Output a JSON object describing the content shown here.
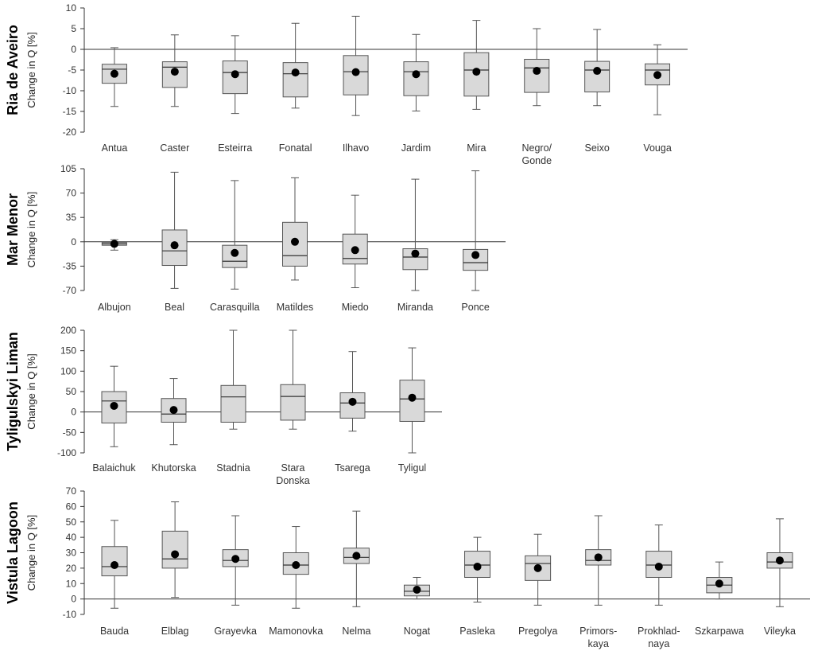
{
  "chart_data": [
    {
      "type": "box",
      "region": "Ria de Aveiro",
      "ylabel": "Change in Q [%]",
      "ylim": [
        -20,
        10
      ],
      "yticks": [
        10,
        5,
        0,
        -5,
        -10,
        -15,
        -20
      ],
      "categories": [
        [
          "Antua"
        ],
        [
          "Caster"
        ],
        [
          "Esteirra"
        ],
        [
          "Fonatal"
        ],
        [
          "Ilhavo"
        ],
        [
          "Jardim"
        ],
        [
          "Mira"
        ],
        [
          "Negro/",
          "Gonde"
        ],
        [
          "Seixo"
        ],
        [
          "Vouga"
        ]
      ],
      "boxes": [
        {
          "min": -13.8,
          "q1": -8.2,
          "median": -4.8,
          "q3": -3.6,
          "max": 0.4,
          "mean": -5.9
        },
        {
          "min": -13.8,
          "q1": -9.2,
          "median": -4.3,
          "q3": -3.0,
          "max": 3.5,
          "mean": -5.4
        },
        {
          "min": -15.5,
          "q1": -10.7,
          "median": -5.6,
          "q3": -2.8,
          "max": 3.3,
          "mean": -6.0
        },
        {
          "min": -14.2,
          "q1": -11.5,
          "median": -5.9,
          "q3": -3.2,
          "max": 6.3,
          "mean": -5.6
        },
        {
          "min": -16.0,
          "q1": -11.0,
          "median": -5.4,
          "q3": -1.5,
          "max": 8.0,
          "mean": -5.5
        },
        {
          "min": -14.9,
          "q1": -11.2,
          "median": -5.4,
          "q3": -3.0,
          "max": 3.6,
          "mean": -6.0
        },
        {
          "min": -14.5,
          "q1": -11.3,
          "median": -5.0,
          "q3": -0.8,
          "max": 7.0,
          "mean": -5.4
        },
        {
          "min": -13.6,
          "q1": -10.4,
          "median": -4.5,
          "q3": -2.4,
          "max": 5.0,
          "mean": -5.2
        },
        {
          "min": -13.6,
          "q1": -10.3,
          "median": -5.0,
          "q3": -2.9,
          "max": 4.8,
          "mean": -5.2
        },
        {
          "min": -15.8,
          "q1": -8.6,
          "median": -5.0,
          "q3": -3.5,
          "max": 1.1,
          "mean": -6.2
        }
      ]
    },
    {
      "type": "box",
      "region": "Mar Menor",
      "ylabel": "Change in Q [%]",
      "ylim": [
        -70,
        105
      ],
      "yticks": [
        105,
        70,
        35,
        0,
        -35,
        -70
      ],
      "categories": [
        [
          "Albujon"
        ],
        [
          "Beal"
        ],
        [
          "Carasquilla"
        ],
        [
          "Matildes"
        ],
        [
          "Miedo"
        ],
        [
          "Miranda"
        ],
        [
          "Ponce"
        ]
      ],
      "boxes": [
        {
          "min": -12,
          "q1": -5,
          "median": -3,
          "q3": -1,
          "max": 3,
          "mean": -3
        },
        {
          "min": -67,
          "q1": -34,
          "median": -13,
          "q3": 17,
          "max": 100,
          "mean": -5
        },
        {
          "min": -68,
          "q1": -37,
          "median": -28,
          "q3": -5,
          "max": 88,
          "mean": -16
        },
        {
          "min": -55,
          "q1": -35,
          "median": -20,
          "q3": 28,
          "max": 92,
          "mean": 0
        },
        {
          "min": -66,
          "q1": -32,
          "median": -24,
          "q3": 11,
          "max": 67,
          "mean": -12
        },
        {
          "min": -70,
          "q1": -40,
          "median": -22,
          "q3": -10,
          "max": 90,
          "mean": -17
        },
        {
          "min": -70,
          "q1": -41,
          "median": -30,
          "q3": -11,
          "max": 102,
          "mean": -19
        }
      ]
    },
    {
      "type": "box",
      "region": "Tyligulskyi Liman",
      "ylabel": "Change in Q [%]",
      "ylim": [
        -100,
        200
      ],
      "yticks": [
        200,
        150,
        100,
        50,
        0,
        -50,
        -100
      ],
      "categories": [
        [
          "Balaichuk"
        ],
        [
          "Khutorska"
        ],
        [
          "Stadnia"
        ],
        [
          "Stara",
          "Donska"
        ],
        [
          "Tsarega"
        ],
        [
          "Tyligul"
        ]
      ],
      "boxes": [
        {
          "min": -85,
          "q1": -27,
          "median": 27,
          "q3": 50,
          "max": 112,
          "mean": 15
        },
        {
          "min": -80,
          "q1": -25,
          "median": -5,
          "q3": 33,
          "max": 82,
          "mean": 5
        },
        {
          "min": -42,
          "q1": -25,
          "median": 37,
          "q3": 65,
          "max": 200,
          "mean": null
        },
        {
          "min": -42,
          "q1": -20,
          "median": 38,
          "q3": 67,
          "max": 200,
          "mean": null
        },
        {
          "min": -47,
          "q1": -15,
          "median": 22,
          "q3": 47,
          "max": 148,
          "mean": 25
        },
        {
          "min": -100,
          "q1": -23,
          "median": 32,
          "q3": 78,
          "max": 157,
          "mean": 35
        }
      ]
    },
    {
      "type": "box",
      "region": "Vistula Lagoon",
      "ylabel": "Change in Q [%]",
      "ylim": [
        -10,
        70
      ],
      "yticks": [
        70,
        60,
        50,
        40,
        30,
        20,
        10,
        0,
        -10
      ],
      "categories": [
        [
          "Bauda"
        ],
        [
          "Elblag"
        ],
        [
          "Grayevka"
        ],
        [
          "Mamonovka"
        ],
        [
          "Nelma"
        ],
        [
          "Nogat"
        ],
        [
          "Pasleka"
        ],
        [
          "Pregolya"
        ],
        [
          "Primors-",
          "kaya"
        ],
        [
          "Prokhlad-",
          "naya"
        ],
        [
          "Szkarpawa"
        ],
        [
          "Vileyka"
        ]
      ],
      "boxes": [
        {
          "min": -6,
          "q1": 15,
          "median": 21,
          "q3": 34,
          "max": 51,
          "mean": 22
        },
        {
          "min": 1,
          "q1": 20,
          "median": 26,
          "q3": 44,
          "max": 63,
          "mean": 29
        },
        {
          "min": -4,
          "q1": 21,
          "median": 25,
          "q3": 32,
          "max": 54,
          "mean": 26
        },
        {
          "min": -6,
          "q1": 16,
          "median": 22,
          "q3": 30,
          "max": 47,
          "mean": 22
        },
        {
          "min": -5,
          "q1": 23,
          "median": 27,
          "q3": 33,
          "max": 57,
          "mean": 28
        },
        {
          "min": 0,
          "q1": 2,
          "median": 5,
          "q3": 9,
          "max": 14,
          "mean": 6
        },
        {
          "min": -2,
          "q1": 14,
          "median": 22,
          "q3": 31,
          "max": 40,
          "mean": 21
        },
        {
          "min": -4,
          "q1": 12,
          "median": 23,
          "q3": 28,
          "max": 42,
          "mean": 20
        },
        {
          "min": -4,
          "q1": 22,
          "median": 25,
          "q3": 32,
          "max": 54,
          "mean": 27
        },
        {
          "min": -4,
          "q1": 14,
          "median": 22,
          "q3": 31,
          "max": 48,
          "mean": 21
        },
        {
          "min": 0,
          "q1": 4,
          "median": 9,
          "q3": 14,
          "max": 24,
          "mean": 10
        },
        {
          "min": -5,
          "q1": 20,
          "median": 24,
          "q3": 30,
          "max": 52,
          "mean": 25
        }
      ]
    }
  ]
}
